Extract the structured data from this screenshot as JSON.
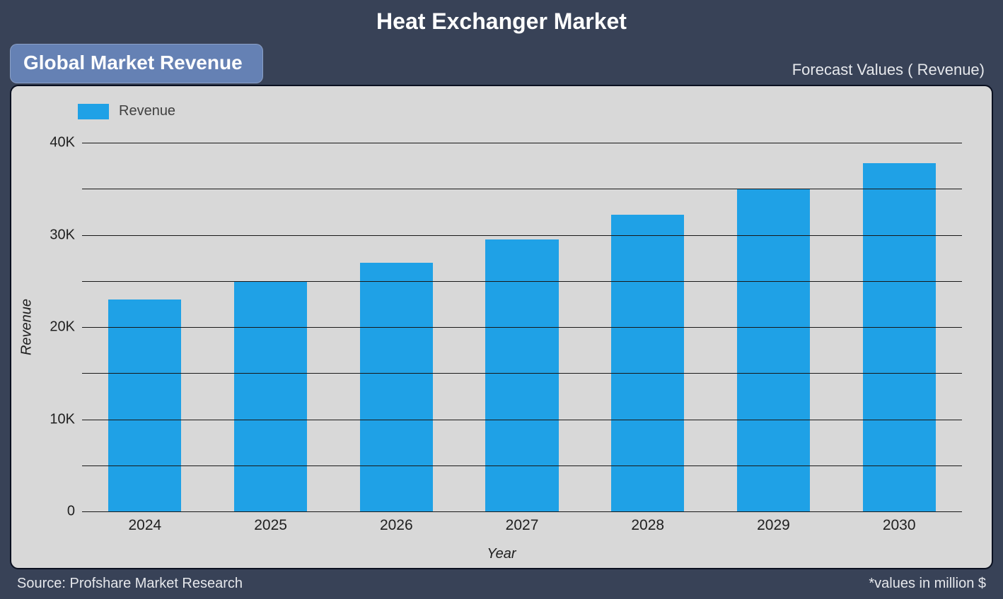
{
  "title": "Heat Exchanger Market",
  "badge": "Global Market Revenue",
  "forecast_label": "Forecast Values ( Revenue)",
  "legend_label": "Revenue",
  "source": "Source: Profshare Market Research",
  "values_note": "*values in million $",
  "chart": {
    "type": "bar",
    "xlabel": "Year",
    "ylabel": "Revenue",
    "categories": [
      "2024",
      "2025",
      "2026",
      "2027",
      "2028",
      "2029",
      "2030"
    ],
    "values": [
      23000,
      25000,
      27000,
      29500,
      32200,
      35000,
      37800
    ],
    "bar_color": "#1fa1e6",
    "background_color": "#d8d8d8",
    "grid_color": "#181818",
    "ymin": 0,
    "ymax": 40000,
    "ytick_step": 5000,
    "ytick_labels": [
      "0",
      "",
      "10K",
      "",
      "20K",
      "",
      "30K",
      "",
      "40K"
    ],
    "label_fontsize": 20,
    "tick_fontsize": 20,
    "bar_width": 0.58,
    "container_background": "#384257",
    "title_color": "#ffffff",
    "title_fontsize": 32,
    "badge_background": "#6581b4",
    "badge_text_color": "#ffffff"
  }
}
